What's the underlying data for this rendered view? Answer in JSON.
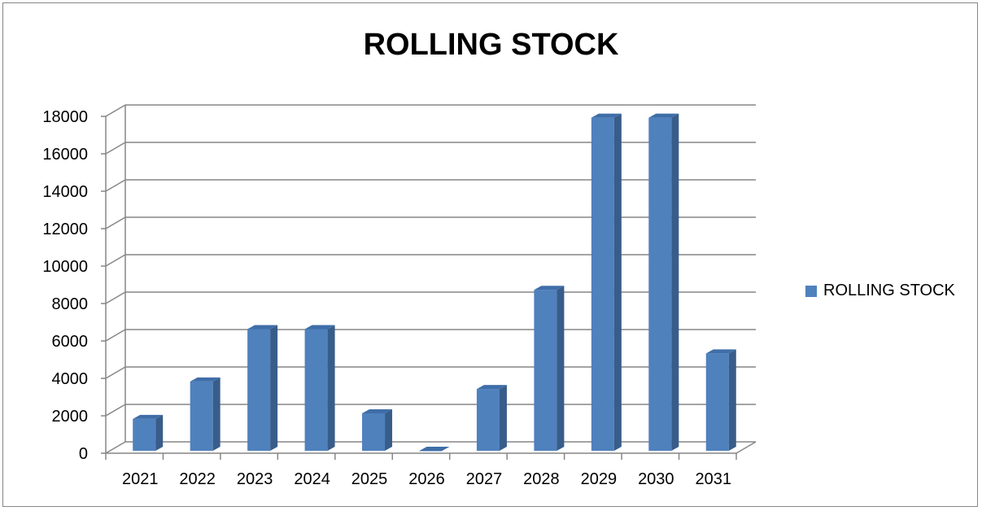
{
  "chart_data": {
    "type": "bar",
    "title": "ROLLING STOCK",
    "xlabel": "",
    "ylabel": "",
    "categories": [
      "2021",
      "2022",
      "2023",
      "2024",
      "2025",
      "2026",
      "2027",
      "2028",
      "2029",
      "2030",
      "2031"
    ],
    "series": [
      {
        "name": "ROLLING STOCK",
        "values": [
          1700,
          3700,
          6500,
          6500,
          2000,
          0,
          3300,
          8600,
          17800,
          17800,
          5200
        ],
        "color": "#4F81BD"
      }
    ],
    "ylim": [
      0,
      18000
    ],
    "yticks": [
      "0",
      "2000",
      "4000",
      "6000",
      "8000",
      "10000",
      "12000",
      "14000",
      "16000",
      "18000"
    ],
    "grid": true,
    "legend": "right",
    "style": "3d-column"
  }
}
